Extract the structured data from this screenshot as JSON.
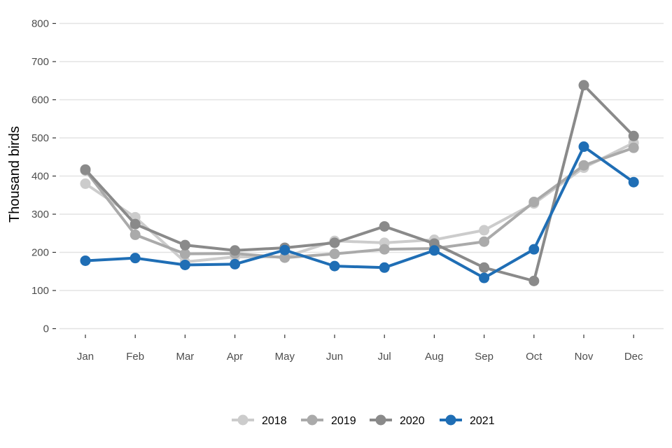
{
  "chart_data": {
    "type": "line",
    "title": "",
    "xlabel": "",
    "ylabel": "Thousand birds",
    "categories": [
      "Jan",
      "Feb",
      "Mar",
      "Apr",
      "May",
      "Jun",
      "Jul",
      "Aug",
      "Sep",
      "Oct",
      "Nov",
      "Dec"
    ],
    "ylim": [
      0,
      800
    ],
    "yticks": [
      0,
      100,
      200,
      300,
      400,
      500,
      600,
      700,
      800
    ],
    "grid": "horizontal",
    "legend_position": "bottom",
    "series": [
      {
        "name": "2018",
        "color": "#cccccc",
        "values": [
          380,
          292,
          175,
          188,
          188,
          230,
          225,
          233,
          258,
          328,
          422,
          487
        ]
      },
      {
        "name": "2019",
        "color": "#aaaaaa",
        "values": [
          415,
          246,
          196,
          197,
          186,
          196,
          208,
          210,
          228,
          332,
          428,
          474
        ]
      },
      {
        "name": "2020",
        "color": "#8a8a8a",
        "values": [
          417,
          274,
          219,
          205,
          212,
          225,
          268,
          223,
          160,
          125,
          638,
          505
        ]
      },
      {
        "name": "2021",
        "color": "#1f6eb5",
        "values": [
          178,
          185,
          167,
          169,
          206,
          164,
          160,
          205,
          133,
          208,
          477,
          384
        ]
      }
    ]
  }
}
